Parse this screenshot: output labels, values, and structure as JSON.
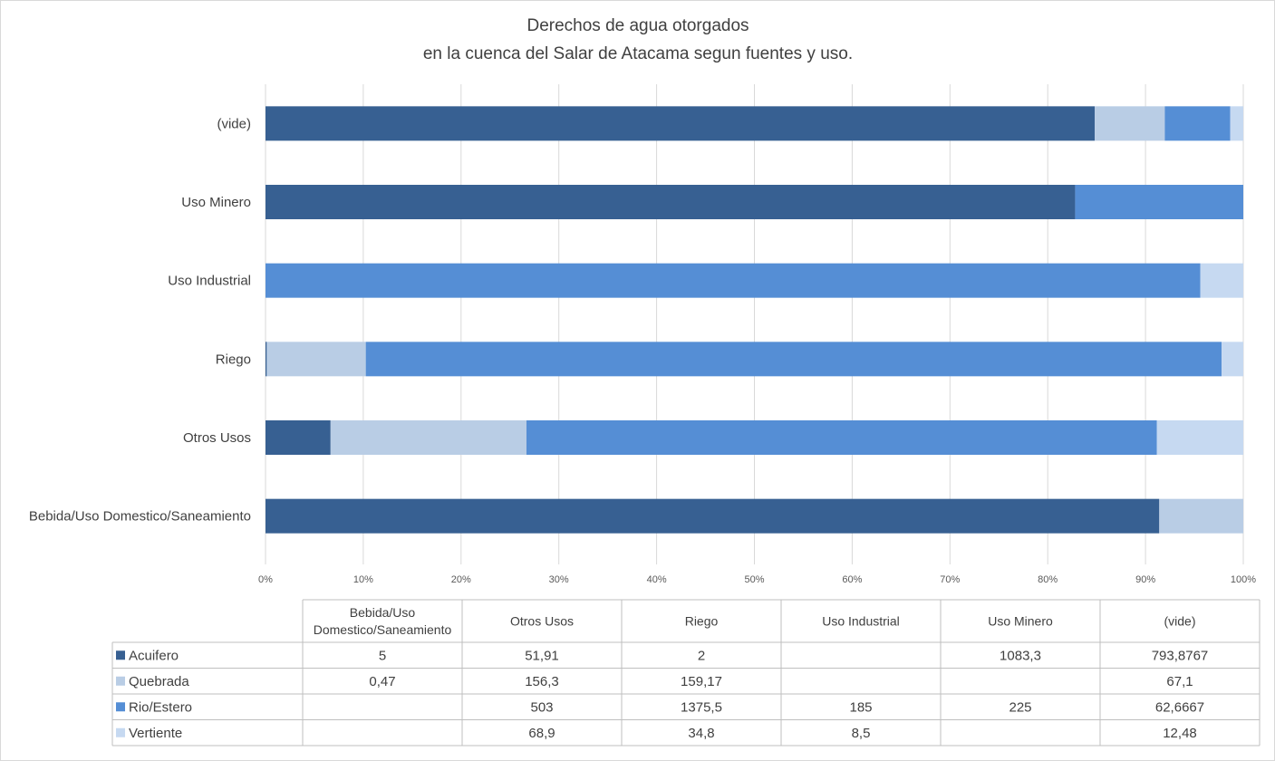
{
  "chart_data": {
    "type": "bar",
    "orientation": "horizontal",
    "stacked": "percent",
    "title": [
      "Derechos de agua otorgados",
      "en la cuenca del Salar de Atacama segun fuentes y uso."
    ],
    "categories": [
      "Bebida/Uso Domestico/Saneamiento",
      "Otros Usos",
      "Riego",
      "Uso Industrial",
      "Uso Minero",
      "(vide)"
    ],
    "category_headers": [
      [
        "Bebida/Uso",
        "Domestico/Saneamiento"
      ],
      [
        "Otros Usos"
      ],
      [
        "Riego"
      ],
      [
        "Uso Industrial"
      ],
      [
        "Uso Minero"
      ],
      [
        "(vide)"
      ]
    ],
    "series": [
      {
        "name": "Acuifero",
        "color": "#376092",
        "values": [
          5,
          51.91,
          2,
          null,
          1083.3,
          793.8767
        ],
        "labels": [
          "5",
          "51,91",
          "2",
          "",
          "1083,3",
          "793,8767"
        ]
      },
      {
        "name": "Quebrada",
        "color": "#b9cde5",
        "values": [
          0.47,
          156.3,
          159.17,
          null,
          null,
          67.1
        ],
        "labels": [
          "0,47",
          "156,3",
          "159,17",
          "",
          "",
          "67,1"
        ]
      },
      {
        "name": "Rio/Estero",
        "color": "#558ed5",
        "values": [
          null,
          503,
          1375.5,
          185,
          225,
          62.6667
        ],
        "labels": [
          "",
          "503",
          "1375,5",
          "185",
          "225",
          "62,6667"
        ]
      },
      {
        "name": "Vertiente",
        "color": "#c6d9f1",
        "values": [
          null,
          68.9,
          34.8,
          8.5,
          null,
          12.48
        ],
        "labels": [
          "",
          "68,9",
          "34,8",
          "8,5",
          "",
          "12,48"
        ]
      }
    ],
    "xlim": [
      0,
      100
    ],
    "xticks": [
      "0%",
      "10%",
      "20%",
      "30%",
      "40%",
      "50%",
      "60%",
      "70%",
      "80%",
      "90%",
      "100%"
    ],
    "grid": true,
    "legend": "data-table",
    "data_table": true
  }
}
